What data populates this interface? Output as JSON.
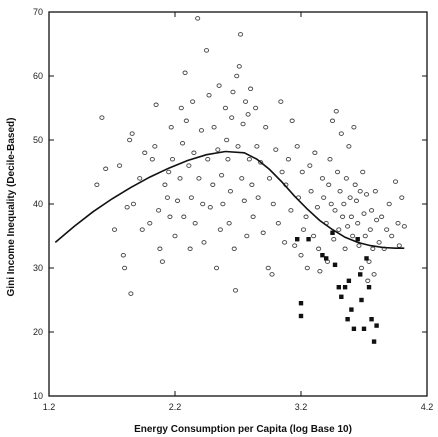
{
  "chart_data": {
    "type": "scatter",
    "title": "",
    "xlabel": "Energy Consumption per Capita (log Base 10)",
    "ylabel": "Gini Income Inequality (Decile-Based)",
    "xlim": [
      1.2,
      4.2
    ],
    "ylim": [
      10,
      70
    ],
    "x_ticks": [
      "1.2",
      "2.2",
      "3.2",
      "4.2"
    ],
    "y_ticks": [
      "10",
      "20",
      "30",
      "40",
      "50",
      "60",
      "70"
    ],
    "grid": false,
    "legend": "none",
    "colors": {
      "open_marker": "#444444",
      "filled_marker": "#111111",
      "curve": "#111111"
    },
    "series": [
      {
        "marker": "open",
        "points": [
          [
            1.58,
            43
          ],
          [
            1.62,
            53.5
          ],
          [
            1.65,
            45.5
          ],
          [
            1.72,
            36
          ],
          [
            1.76,
            46
          ],
          [
            1.79,
            32
          ],
          [
            1.8,
            30
          ],
          [
            1.82,
            39.5
          ],
          [
            1.84,
            50
          ],
          [
            1.85,
            26
          ],
          [
            1.86,
            51
          ],
          [
            1.87,
            40
          ],
          [
            1.92,
            44
          ],
          [
            1.94,
            36
          ],
          [
            1.96,
            48
          ],
          [
            2.0,
            37
          ],
          [
            2.02,
            47
          ],
          [
            2.04,
            49
          ],
          [
            2.05,
            55.5
          ],
          [
            2.07,
            39
          ],
          [
            2.08,
            33
          ],
          [
            2.1,
            31
          ],
          [
            2.12,
            43
          ],
          [
            2.14,
            41
          ],
          [
            2.15,
            45
          ],
          [
            2.16,
            38
          ],
          [
            2.17,
            52
          ],
          [
            2.18,
            47
          ],
          [
            2.2,
            35
          ],
          [
            2.22,
            40.5
          ],
          [
            2.24,
            44
          ],
          [
            2.25,
            55
          ],
          [
            2.26,
            49.5
          ],
          [
            2.27,
            38
          ],
          [
            2.28,
            60.5
          ],
          [
            2.29,
            53
          ],
          [
            2.31,
            46
          ],
          [
            2.32,
            33
          ],
          [
            2.33,
            41
          ],
          [
            2.34,
            56
          ],
          [
            2.35,
            48
          ],
          [
            2.36,
            37
          ],
          [
            2.38,
            69
          ],
          [
            2.39,
            44
          ],
          [
            2.41,
            51.5
          ],
          [
            2.42,
            40
          ],
          [
            2.43,
            34
          ],
          [
            2.45,
            64
          ],
          [
            2.46,
            47
          ],
          [
            2.47,
            57
          ],
          [
            2.48,
            39.5
          ],
          [
            2.5,
            43
          ],
          [
            2.51,
            52
          ],
          [
            2.53,
            30
          ],
          [
            2.54,
            48.5
          ],
          [
            2.55,
            58.5
          ],
          [
            2.56,
            36
          ],
          [
            2.57,
            44.5
          ],
          [
            2.58,
            40
          ],
          [
            2.6,
            55
          ],
          [
            2.61,
            50
          ],
          [
            2.62,
            47
          ],
          [
            2.63,
            37
          ],
          [
            2.64,
            42
          ],
          [
            2.65,
            53.5
          ],
          [
            2.66,
            57.5
          ],
          [
            2.67,
            33
          ],
          [
            2.68,
            26.5
          ],
          [
            2.69,
            60
          ],
          [
            2.7,
            49
          ],
          [
            2.71,
            61.5
          ],
          [
            2.72,
            66.5
          ],
          [
            2.73,
            44
          ],
          [
            2.74,
            52.5
          ],
          [
            2.75,
            40.5
          ],
          [
            2.76,
            56
          ],
          [
            2.77,
            35
          ],
          [
            2.78,
            54
          ],
          [
            2.79,
            47
          ],
          [
            2.8,
            58
          ],
          [
            2.81,
            43
          ],
          [
            2.82,
            38
          ],
          [
            2.84,
            55
          ],
          [
            2.85,
            49
          ],
          [
            2.86,
            41
          ],
          [
            2.88,
            46.5
          ],
          [
            2.9,
            35.5
          ],
          [
            2.92,
            52
          ],
          [
            2.94,
            30
          ],
          [
            2.95,
            44
          ],
          [
            2.97,
            29
          ],
          [
            2.98,
            40
          ],
          [
            3.0,
            48.5
          ],
          [
            3.02,
            37
          ],
          [
            3.04,
            56
          ],
          [
            3.05,
            45
          ],
          [
            3.07,
            34
          ],
          [
            3.08,
            43
          ],
          [
            3.1,
            47
          ],
          [
            3.12,
            39
          ],
          [
            3.13,
            53
          ],
          [
            3.15,
            33.5
          ],
          [
            3.17,
            49
          ],
          [
            3.18,
            41
          ],
          [
            3.2,
            32
          ],
          [
            3.21,
            45
          ],
          [
            3.22,
            36
          ],
          [
            3.24,
            38
          ],
          [
            3.25,
            30
          ],
          [
            3.27,
            46
          ],
          [
            3.28,
            42
          ],
          [
            3.3,
            35
          ],
          [
            3.31,
            48
          ],
          [
            3.33,
            39.5
          ],
          [
            3.34,
            33
          ],
          [
            3.35,
            29.5
          ],
          [
            3.37,
            44
          ],
          [
            3.38,
            41
          ],
          [
            3.4,
            37
          ],
          [
            3.41,
            31
          ],
          [
            3.42,
            43
          ],
          [
            3.43,
            47
          ],
          [
            3.44,
            40
          ],
          [
            3.45,
            53
          ],
          [
            3.46,
            34.5
          ],
          [
            3.47,
            39
          ],
          [
            3.48,
            54.5
          ],
          [
            3.49,
            45
          ],
          [
            3.5,
            36
          ],
          [
            3.51,
            42
          ],
          [
            3.52,
            51
          ],
          [
            3.53,
            38
          ],
          [
            3.54,
            40
          ],
          [
            3.55,
            33
          ],
          [
            3.56,
            44
          ],
          [
            3.57,
            36.5
          ],
          [
            3.58,
            49
          ],
          [
            3.59,
            41
          ],
          [
            3.6,
            38
          ],
          [
            3.61,
            35
          ],
          [
            3.62,
            52
          ],
          [
            3.63,
            43
          ],
          [
            3.64,
            40.5
          ],
          [
            3.65,
            37
          ],
          [
            3.66,
            33.5
          ],
          [
            3.67,
            42
          ],
          [
            3.68,
            30
          ],
          [
            3.69,
            45
          ],
          [
            3.7,
            38.5
          ],
          [
            3.71,
            35
          ],
          [
            3.72,
            41.5
          ],
          [
            3.73,
            28
          ],
          [
            3.74,
            31
          ],
          [
            3.75,
            36
          ],
          [
            3.76,
            39
          ],
          [
            3.77,
            33
          ],
          [
            3.78,
            29
          ],
          [
            3.79,
            42
          ],
          [
            3.8,
            37.5
          ],
          [
            3.82,
            34
          ],
          [
            3.84,
            38
          ],
          [
            3.86,
            33
          ],
          [
            3.88,
            36
          ],
          [
            3.9,
            40
          ],
          [
            3.92,
            35
          ],
          [
            3.95,
            43.5
          ],
          [
            3.97,
            37
          ],
          [
            3.98,
            33.5
          ],
          [
            4.0,
            41
          ],
          [
            4.02,
            36.5
          ]
        ]
      },
      {
        "marker": "filled",
        "points": [
          [
            3.17,
            34.5
          ],
          [
            3.2,
            24.5
          ],
          [
            3.2,
            22.5
          ],
          [
            3.26,
            34.5
          ],
          [
            3.37,
            32
          ],
          [
            3.4,
            31.5
          ],
          [
            3.45,
            35.5
          ],
          [
            3.47,
            30.5
          ],
          [
            3.5,
            27
          ],
          [
            3.52,
            25.5
          ],
          [
            3.55,
            27
          ],
          [
            3.57,
            22
          ],
          [
            3.58,
            28
          ],
          [
            3.6,
            23.5
          ],
          [
            3.62,
            20.5
          ],
          [
            3.65,
            34.5
          ],
          [
            3.67,
            29
          ],
          [
            3.68,
            25
          ],
          [
            3.7,
            20.5
          ],
          [
            3.72,
            31.5
          ],
          [
            3.74,
            27
          ],
          [
            3.76,
            22
          ],
          [
            3.78,
            18.5
          ],
          [
            3.8,
            21
          ]
        ]
      }
    ],
    "curve": {
      "x": [
        1.25,
        1.4,
        1.55,
        1.7,
        1.85,
        2.0,
        2.15,
        2.3,
        2.45,
        2.6,
        2.75,
        2.85,
        2.95,
        3.05,
        3.15,
        3.25,
        3.35,
        3.45,
        3.55,
        3.65,
        3.75,
        3.85,
        3.95,
        4.02
      ],
      "y": [
        34,
        36.5,
        38.8,
        40.8,
        42.6,
        44.2,
        45.6,
        46.8,
        47.7,
        48.2,
        48,
        47,
        45.4,
        43.4,
        41.2,
        39.2,
        37.4,
        36,
        34.8,
        34,
        33.5,
        33.2,
        33.1,
        33.1
      ]
    }
  }
}
